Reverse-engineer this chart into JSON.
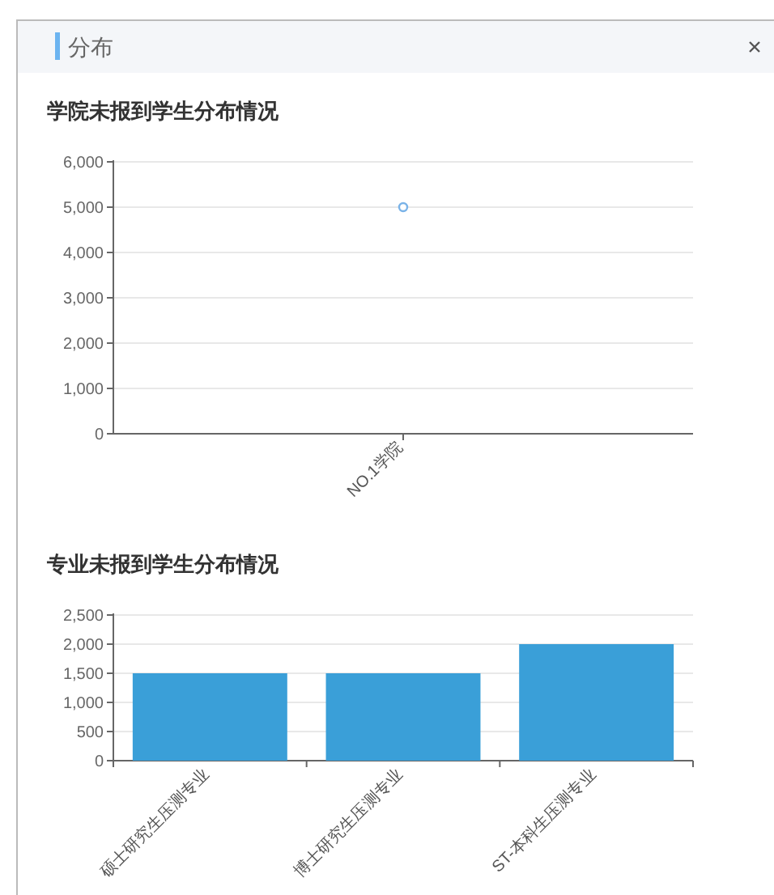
{
  "chart_data": [
    {
      "type": "line",
      "title": "学院未报到学生分布情况",
      "annotations": [
        "分布"
      ],
      "categories": [
        "NO.1学院"
      ],
      "series": [
        {
          "color": "#7ab3e8",
          "values": [
            5000
          ]
        }
      ],
      "ylim": [
        0,
        6000
      ],
      "yticks": [
        {
          "value": 0,
          "label": "0"
        },
        {
          "value": 1000,
          "label": "1,000"
        },
        {
          "value": 2000,
          "label": "2,000"
        },
        {
          "value": 3000,
          "label": "3,000"
        },
        {
          "value": 4000,
          "label": "4,000"
        },
        {
          "value": 5000,
          "label": "5,000"
        },
        {
          "value": 6000,
          "label": "6,000"
        }
      ],
      "grid": "y",
      "marker": "circle"
    },
    {
      "type": "bar",
      "title": "专业未报到学生分布情况",
      "categories": [
        "硕士研究生压测专业",
        "博士研究生压测专业",
        "ST-本科生压测专业"
      ],
      "series": [
        {
          "color": "#3a9fd8",
          "values": [
            1500,
            1500,
            2000
          ]
        }
      ],
      "ylim": [
        0,
        2500
      ],
      "yticks": [
        {
          "value": 0,
          "label": "0"
        },
        {
          "value": 500,
          "label": "500"
        },
        {
          "value": 1000,
          "label": "1,000"
        },
        {
          "value": 1500,
          "label": "1,500"
        },
        {
          "value": 2000,
          "label": "2,000"
        },
        {
          "value": 2500,
          "label": "2,500"
        }
      ],
      "grid": "y"
    }
  ]
}
